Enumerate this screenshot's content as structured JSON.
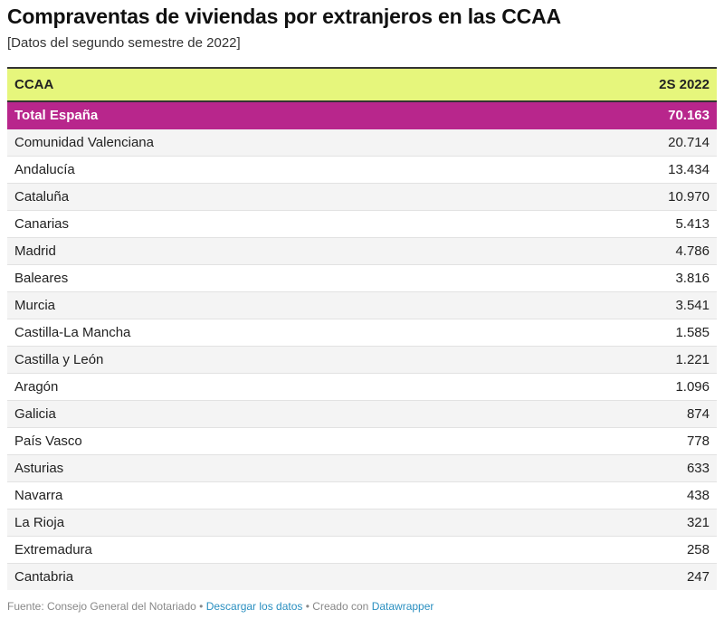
{
  "title": "Compraventas de viviendas por extranjeros en las CCAA",
  "subtitle": "[Datos del segundo semestre de 2022]",
  "chart_data": {
    "type": "table",
    "columns": [
      "CCAA",
      "2S 2022"
    ],
    "total": {
      "label": "Total España",
      "value": "70.163"
    },
    "rows": [
      {
        "label": "Comunidad Valenciana",
        "value": "20.714"
      },
      {
        "label": "Andalucía",
        "value": "13.434"
      },
      {
        "label": "Cataluña",
        "value": "10.970"
      },
      {
        "label": "Canarias",
        "value": "5.413"
      },
      {
        "label": "Madrid",
        "value": "4.786"
      },
      {
        "label": "Baleares",
        "value": "3.816"
      },
      {
        "label": "Murcia",
        "value": "3.541"
      },
      {
        "label": "Castilla-La Mancha",
        "value": "1.585"
      },
      {
        "label": "Castilla y León",
        "value": "1.221"
      },
      {
        "label": "Aragón",
        "value": "1.096"
      },
      {
        "label": "Galicia",
        "value": "874"
      },
      {
        "label": "País Vasco",
        "value": "778"
      },
      {
        "label": "Asturias",
        "value": "633"
      },
      {
        "label": "Navarra",
        "value": "438"
      },
      {
        "label": "La Rioja",
        "value": "321"
      },
      {
        "label": "Extremadura",
        "value": "258"
      },
      {
        "label": "Cantabria",
        "value": "247"
      }
    ]
  },
  "colors": {
    "header_bg": "#e6f67c",
    "total_bg": "#b8268c",
    "link": "#2a8fc0"
  },
  "footer": {
    "source": "Fuente: Consejo General del Notariado",
    "separator": "•",
    "download_link": "Descargar los datos",
    "created_with": "Creado con",
    "tool_link": "Datawrapper"
  }
}
